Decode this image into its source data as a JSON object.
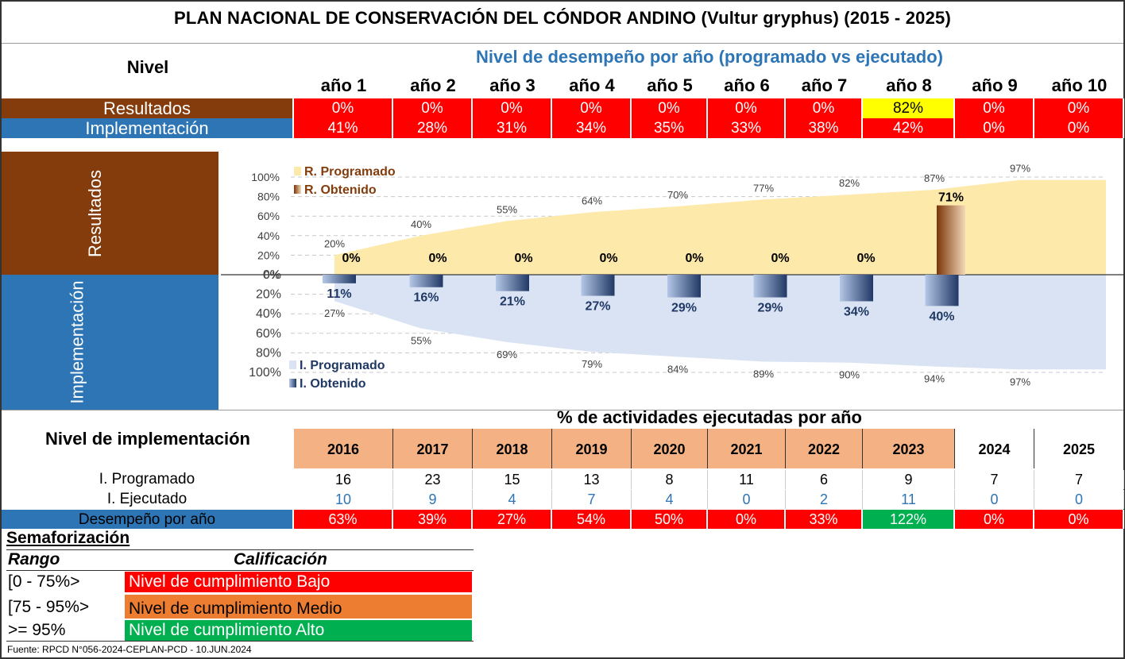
{
  "title": "PLAN NACIONAL DE CONSERVACIÓN DEL CÓNDOR ANDINO (Vultur gryphus) (2015 - 2025)",
  "top_table": {
    "nivel_header": "Nivel",
    "performance_header": "Nivel de desempeño por año (programado vs ejecutado)",
    "years": [
      "año 1",
      "año 2",
      "año 3",
      "año 4",
      "año 5",
      "año 6",
      "año 7",
      "año 8",
      "año 9",
      "año 10"
    ],
    "resultados_label": "Resultados",
    "resultados": [
      "0%",
      "0%",
      "0%",
      "0%",
      "0%",
      "0%",
      "0%",
      "82%",
      "0%",
      "0%"
    ],
    "resultados_colors": [
      "#ff0000",
      "#ff0000",
      "#ff0000",
      "#ff0000",
      "#ff0000",
      "#ff0000",
      "#ff0000",
      "#ffff00",
      "#ff0000",
      "#ff0000"
    ],
    "implementacion_label": "Implementación",
    "implementacion": [
      "41%",
      "28%",
      "31%",
      "34%",
      "35%",
      "33%",
      "38%",
      "42%",
      "0%",
      "0%"
    ]
  },
  "chart_data": {
    "type": "area",
    "side_labels": {
      "top": "Resultados",
      "bottom": "Implementación"
    },
    "y_ticks_top": [
      "100%",
      "80%",
      "60%",
      "40%",
      "20%",
      "0%"
    ],
    "y_ticks_bottom": [
      "0%",
      "20%",
      "40%",
      "60%",
      "80%",
      "100%"
    ],
    "top_series": [
      {
        "name": "R. Programado",
        "kind": "area",
        "color": "#fde9a9",
        "values": [
          20,
          40,
          55,
          64,
          70,
          77,
          82,
          87,
          97
        ],
        "x_end": 97
      },
      {
        "name": "R. Obtenido",
        "kind": "bar",
        "color": "#843c0c",
        "values": [
          0,
          0,
          0,
          0,
          0,
          0,
          0,
          71
        ]
      }
    ],
    "bottom_series": [
      {
        "name": "I. Programado",
        "kind": "area",
        "color": "#dae3f3",
        "values": [
          27,
          55,
          69,
          79,
          84,
          89,
          90,
          94,
          97
        ]
      },
      {
        "name": "I. Obtenido",
        "kind": "bar",
        "color": "#2f4f8f",
        "values": [
          11,
          16,
          21,
          27,
          29,
          29,
          34,
          40
        ]
      }
    ]
  },
  "activity_table": {
    "header": "% de actividades ejecutadas por año",
    "nivel_header": "Nivel de implementación",
    "years": [
      "2016",
      "2017",
      "2018",
      "2019",
      "2020",
      "2021",
      "2022",
      "2023",
      "2024",
      "2025"
    ],
    "year_colors": [
      "#f4b183",
      "#f4b183",
      "#f4b183",
      "#f4b183",
      "#f4b183",
      "#f4b183",
      "#f4b183",
      "#f4b183",
      "#ffffff",
      "#ffffff"
    ],
    "programado_label": "I. Programado",
    "programado": [
      "16",
      "23",
      "15",
      "13",
      "8",
      "11",
      "6",
      "9",
      "7",
      "7"
    ],
    "ejecutado_label": "I. Ejecutado",
    "ejecutado": [
      "10",
      "9",
      "4",
      "7",
      "4",
      "0",
      "2",
      "11",
      "0",
      "0"
    ],
    "desempeno_label": "Desempeño por año",
    "desempeno": [
      "63%",
      "39%",
      "27%",
      "54%",
      "50%",
      "0%",
      "33%",
      "122%",
      "0%",
      "0%"
    ],
    "desempeno_colors": [
      "#ff0000",
      "#ff0000",
      "#ff0000",
      "#ff0000",
      "#ff0000",
      "#ff0000",
      "#ff0000",
      "#00b050",
      "#ff0000",
      "#ff0000"
    ]
  },
  "semaforizacion": {
    "title": "Semaforización",
    "rango_header": "Rango",
    "calificacion_header": "Calificación",
    "rows": [
      {
        "rango": "[0 - 75%>",
        "nivel": "Nivel de cumplimiento Bajo",
        "color": "#ff0000"
      },
      {
        "rango": "[75 - 95%>",
        "nivel": "Nivel de cumplimiento Medio",
        "color": "#ed7d31"
      },
      {
        "rango": ">= 95%",
        "nivel": "Nivel de cumplimiento Alto",
        "color": "#00b050"
      }
    ]
  },
  "fuente": "Fuente: RPCD N°056-2024-CEPLAN-PCD - 10.JUN.2024"
}
